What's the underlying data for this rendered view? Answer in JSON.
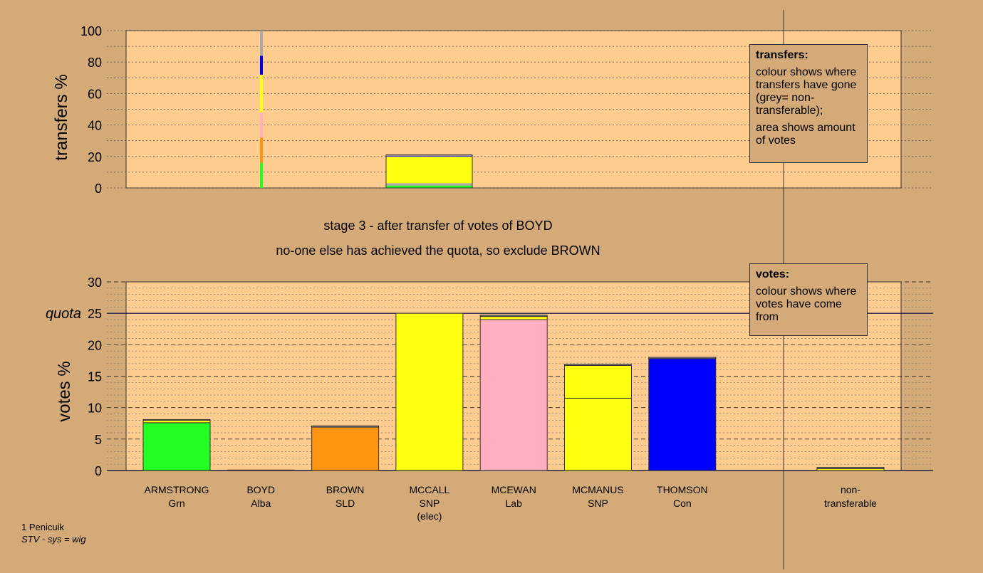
{
  "colors": {
    "background": "#d4aa78",
    "plot_background": "#ffcc90",
    "party": {
      "Grn": "#22ff22",
      "Alba": "#888888",
      "SLD": "#ff9410",
      "SNP": "#ffff10",
      "Lab": "#ffafc0",
      "Con": "#0000ff",
      "nontransferable": "#aaaaaa"
    }
  },
  "headings": {
    "stage": "stage 3 - after transfer of votes of BOYD",
    "action": "no-one else has achieved the quota, so exclude BROWN"
  },
  "legends": {
    "transfers": {
      "title": "transfers:",
      "line1": "colour shows where transfers have gone (grey= non-transferable);",
      "line2": "area shows amount of votes"
    },
    "votes": {
      "title": "votes:",
      "line1": "colour shows where votes have come from"
    }
  },
  "footer": {
    "ward": "1 Penicuik",
    "system": "STV - sys = wig"
  },
  "chart_data": [
    {
      "type": "bar",
      "name": "transfers",
      "ylabel": "transfers %",
      "ylim": [
        0,
        100
      ],
      "yticks": [
        0,
        20,
        40,
        60,
        80,
        100
      ],
      "grid": true,
      "source_column": {
        "candidate": "BOYD",
        "segments": [
          {
            "color": "Grn",
            "value": 16
          },
          {
            "color": "SLD",
            "value": 16
          },
          {
            "color": "Lab",
            "value": 16
          },
          {
            "color": "SNP",
            "value": 24
          },
          {
            "color": "Con",
            "value": 12
          },
          {
            "color": "nontransferable",
            "value": 16
          }
        ]
      },
      "transfer_block": {
        "segments": [
          {
            "color": "Grn",
            "value": 1.5
          },
          {
            "color": "nontransferable",
            "value": 1.5
          },
          {
            "color": "SNP",
            "value": 17
          },
          {
            "color": "Con",
            "value": 0.5
          },
          {
            "color": "nontransferable",
            "value": 0.5
          }
        ]
      }
    },
    {
      "type": "bar",
      "name": "votes",
      "ylabel": "votes %",
      "ylim": [
        0,
        30
      ],
      "yticks": [
        0,
        5,
        10,
        15,
        20,
        25,
        30
      ],
      "quota": 25,
      "quota_label": "quota",
      "grid": true,
      "candidates": [
        {
          "name": "ARMSTRONG",
          "party": "Grn",
          "note": "",
          "segments": [
            {
              "color": "Grn",
              "value": 7.6
            },
            {
              "color": "SNP",
              "value": 0.4
            },
            {
              "color": "Alba",
              "value": 0.1
            }
          ]
        },
        {
          "name": "BOYD",
          "party": "Alba",
          "note": "",
          "segments": [
            {
              "color": "Alba",
              "value": 0
            }
          ]
        },
        {
          "name": "BROWN",
          "party": "SLD",
          "note": "",
          "segments": [
            {
              "color": "SLD",
              "value": 6.9
            },
            {
              "color": "Alba",
              "value": 0.2
            }
          ]
        },
        {
          "name": "MCCALL",
          "party": "SNP",
          "note": "(elec)",
          "segments": [
            {
              "color": "SNP",
              "value": 25
            }
          ]
        },
        {
          "name": "MCEWAN",
          "party": "Lab",
          "note": "",
          "segments": [
            {
              "color": "Lab",
              "value": 24
            },
            {
              "color": "SNP",
              "value": 0.5
            },
            {
              "color": "Alba",
              "value": 0.2
            }
          ]
        },
        {
          "name": "MCMANUS",
          "party": "SNP",
          "note": "",
          "segments": [
            {
              "color": "SNP",
              "value": 11.5
            },
            {
              "color": "SNP",
              "value": 5.2
            },
            {
              "color": "Alba",
              "value": 0.2
            }
          ]
        },
        {
          "name": "THOMSON",
          "party": "Con",
          "note": "",
          "segments": [
            {
              "color": "Con",
              "value": 17.8
            },
            {
              "color": "Alba",
              "value": 0.2
            }
          ]
        }
      ],
      "nontransferable": {
        "label_top": "non-",
        "label_bottom": "transferable",
        "segments": [
          {
            "color": "SNP",
            "value": 0.3
          },
          {
            "color": "Alba",
            "value": 0.2
          }
        ]
      }
    }
  ]
}
